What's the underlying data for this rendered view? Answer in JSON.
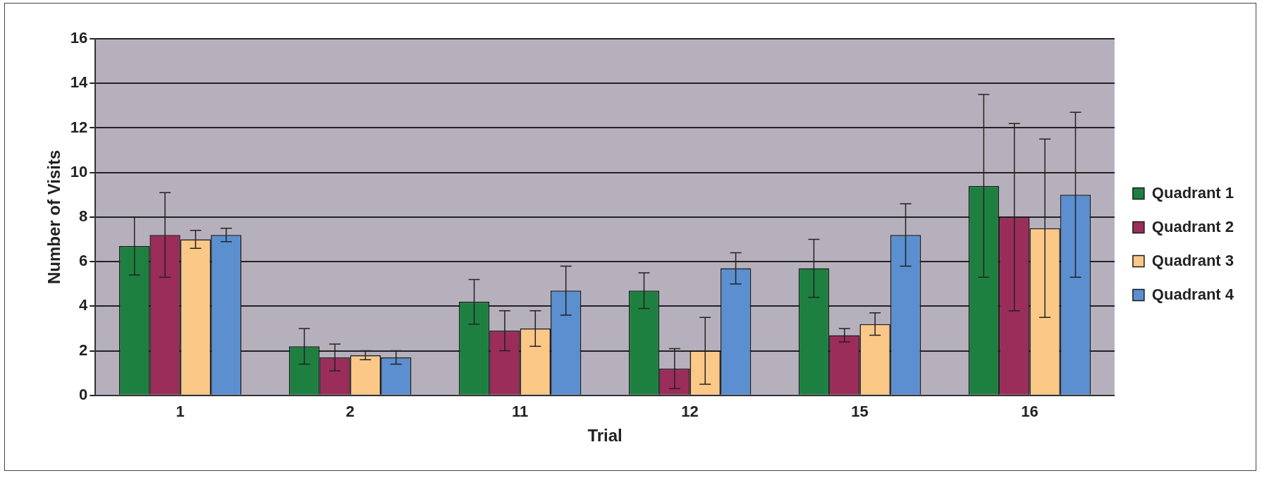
{
  "chart_data": {
    "type": "bar",
    "xlabel": "Trial",
    "ylabel": "Number of Visits",
    "categories": [
      "1",
      "2",
      "11",
      "12",
      "15",
      "16"
    ],
    "series": [
      {
        "name": "Quadrant 1",
        "color": "#1e8040",
        "values": [
          6.7,
          2.2,
          4.2,
          4.7,
          5.7,
          9.4
        ],
        "errors": [
          1.3,
          0.8,
          1.0,
          0.8,
          1.3,
          4.1
        ]
      },
      {
        "name": "Quadrant 2",
        "color": "#9b2d5a",
        "values": [
          7.2,
          1.7,
          2.9,
          1.2,
          2.7,
          8.0
        ],
        "errors": [
          1.9,
          0.6,
          0.9,
          0.9,
          0.3,
          4.2
        ]
      },
      {
        "name": "Quadrant 3",
        "color": "#fcc887",
        "values": [
          7.0,
          1.8,
          3.0,
          2.0,
          3.2,
          7.5
        ],
        "errors": [
          0.4,
          0.2,
          0.8,
          1.5,
          0.5,
          4.0
        ]
      },
      {
        "name": "Quadrant 4",
        "color": "#5b8fd0",
        "values": [
          7.2,
          1.7,
          4.7,
          5.7,
          7.2,
          9.0
        ],
        "errors": [
          0.3,
          0.3,
          1.1,
          0.7,
          1.4,
          3.7
        ]
      }
    ],
    "ylim": [
      0,
      16
    ],
    "yticks": [
      0,
      2,
      4,
      6,
      8,
      10,
      12,
      14,
      16
    ],
    "grid": "y",
    "legend": "right"
  }
}
